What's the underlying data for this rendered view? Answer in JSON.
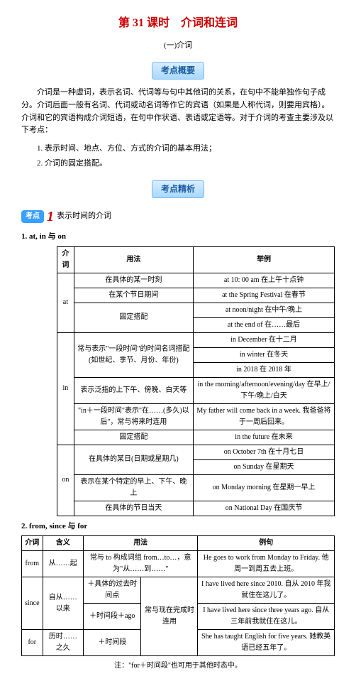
{
  "title": "第 31 课时　介词和连词",
  "subtitle": "(一)介词",
  "sectionA": "考点概要",
  "para1": "介词是一种虚词，表示名词、代词等与句中其他词的关系，在句中不能单独作句子成分。介词后面一般有名词、代词或动名词等作它的宾语（如果是人称代词，则要用宾格）。介词和它的宾语构成介词短语，在句中作状语、表语或定语等。对于介词的考查主要涉及以下考点：",
  "list1": "1. 表示时间、地点、方位、方式的介词的基本用法；",
  "list2": "2. 介词的固定搭配。",
  "sectionB": "考点精析",
  "kaodianLabel": "考点",
  "kaodianNum": "1",
  "kaodianText": "表示时间的介词",
  "sub1": "1. at, in 与 on",
  "t1": {
    "h1": "介词",
    "h2": "用法",
    "h3": "举例",
    "at": "at",
    "at_r1u": "在具体的某一时刻",
    "at_r1e": "at 10: 00 am 在上午十点钟",
    "at_r2u": "在某个节日期间",
    "at_r2e": "at the Spring Festival 在春节",
    "at_r3u": "固定搭配",
    "at_r3e1": "at noon/night 在中午/晚上",
    "at_r3e2": "at the end of 在……最后",
    "in": "in",
    "in_r1u": "常与表示\"一段时间\"的时间名词搭配(如世纪、季节、月份、年份)",
    "in_r1e1": "in December 在十二月",
    "in_r1e2": "in winter 在冬天",
    "in_r1e3": "in 2018 在 2018 年",
    "in_r2u": "表示泛指的上下午、傍晚、白天等",
    "in_r2e": "in the morning/afternoon/evening/day 在早上/下午/晚上/白天",
    "in_r3u": "\"in＋一段时间\"表示\"在……(多久)以后\"，常与将来时连用",
    "in_r3e": "My father will come back in a week. 我爸爸将于一周后回来。",
    "in_r4u": "固定搭配",
    "in_r4e": "in the future 在未来",
    "on": "on",
    "on_r1u": "在具体的某日(日期或星期几)",
    "on_r1e1": "on October 7th 在十月七日",
    "on_r1e2": "on Sunday 在星期天",
    "on_r2u": "表示在某个特定的早上、下午、晚上",
    "on_r2e": "on Monday morning 在星期一早上",
    "on_r3u": "在具体的节日当天",
    "on_r3e": "on National Day 在国庆节"
  },
  "sub2": "2. from, since 与 for",
  "t2": {
    "h1": "介词",
    "h2": "含义",
    "h3": "用法",
    "h4": "例句",
    "from": "from",
    "from_m": "从……起",
    "from_u": "常与 to 构成词组 from…to…，意为\"从……到……\"",
    "from_e": "He goes to work from Monday to Friday. 他周一到周五去上班。",
    "since": "since",
    "since_m": "自从……以来",
    "since_u1": "＋具体的过去时间点",
    "since_e1": "I have lived here since 2010. 自从 2010 年我就住在这儿了。",
    "since_u2": "＋时间段＋ago",
    "since_e2": "I have lived here since three years ago. 自从三年前我就住在这儿。",
    "since_u3": "常与现在完成时连用",
    "for": "for",
    "for_m": "历时……之久",
    "for_u": "＋时间段",
    "for_e": "She has taught English for five years. 她教英语已经五年了。"
  },
  "note": "注：\"for＋时间段\"也可用于其他时态中。"
}
